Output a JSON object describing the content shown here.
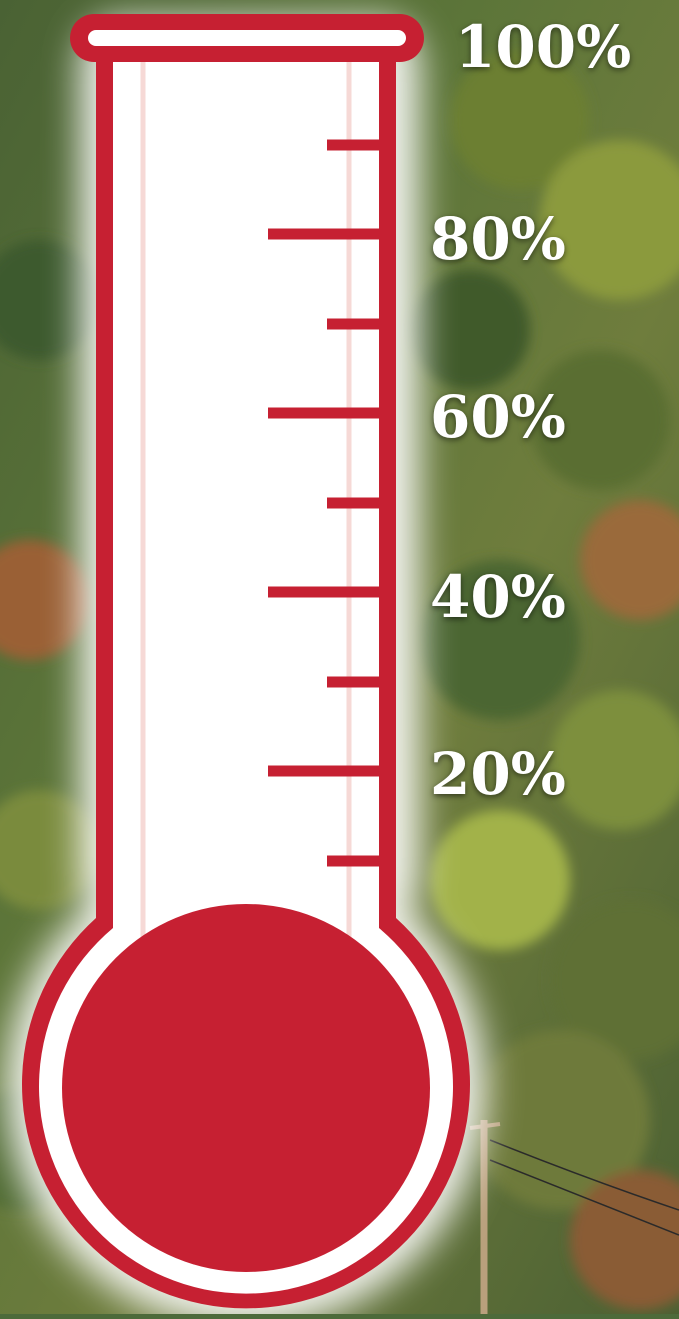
{
  "thermometer": {
    "fill_fraction": 0,
    "accent_color": "#c62032",
    "labels": [
      "100%",
      "80%",
      "60%",
      "40%",
      "20%"
    ]
  },
  "background": {
    "subject": "forested hillside with autumn foliage and a utility pole",
    "colors": [
      "#3f5a2e",
      "#6b7d3a",
      "#8f9b45",
      "#a4653a",
      "#7a8a5c"
    ]
  }
}
